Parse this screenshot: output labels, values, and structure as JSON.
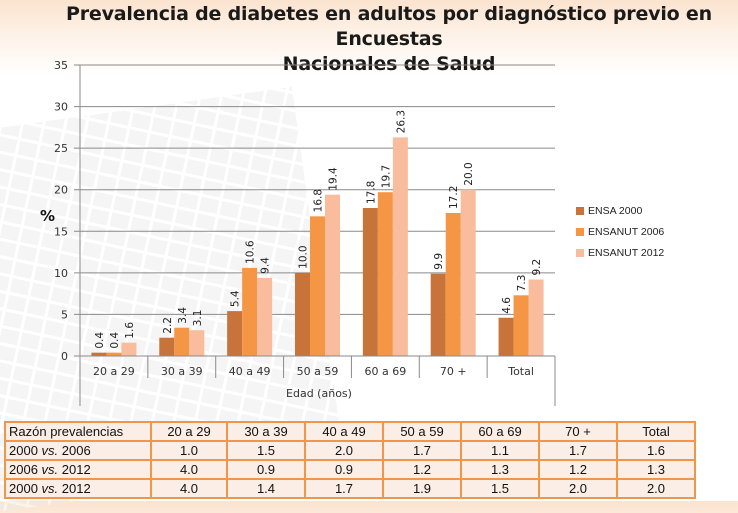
{
  "title_lines": [
    "Prevalencia de diabetes en adultos por diagnóstico previo en Encuestas",
    "Nacionales de Salud"
  ],
  "chart_data": {
    "type": "bar",
    "title": "Prevalencia de diabetes en adultos por diagnóstico previo en Encuestas Nacionales de Salud",
    "xlabel": "Edad (años)",
    "ylabel": "%",
    "ylim": [
      0,
      35
    ],
    "yticks": [
      0,
      5,
      10,
      15,
      20,
      25,
      30,
      35
    ],
    "grid": true,
    "legend_position": "right",
    "categories": [
      "20 a 29",
      "30 a 39",
      "40 a 49",
      "50 a 59",
      "60 a 69",
      "70 +",
      "Total"
    ],
    "series": [
      {
        "name": "ENSA 2000",
        "color": "#c8733a",
        "values": [
          0.4,
          2.2,
          5.4,
          10.0,
          17.8,
          9.9,
          4.6
        ],
        "labels": [
          "0.4",
          "2.2",
          "5.4",
          "10.0",
          "17.8",
          "9.9",
          "4.6"
        ]
      },
      {
        "name": "ENSANUT 2006",
        "color": "#f59645",
        "values": [
          0.4,
          3.4,
          10.6,
          16.8,
          19.7,
          17.2,
          7.3
        ],
        "labels": [
          "0.4",
          "3.4",
          "10.6",
          "16.8",
          "19.7",
          "17.2",
          "7.3"
        ]
      },
      {
        "name": "ENSANUT 2012",
        "color": "#f9bc9c",
        "values": [
          1.6,
          3.1,
          9.4,
          19.4,
          26.3,
          20.0,
          9.2
        ],
        "labels": [
          "1.6",
          "3.1",
          "9.4",
          "19.4",
          "26.3",
          "20.0",
          "9.2"
        ]
      }
    ]
  },
  "ratio_table": {
    "header": [
      "Razón prevalencias",
      "20 a 29",
      "30 a 39",
      "40 a 49",
      "50 a 59",
      "60 a 69",
      "70 +",
      "Total"
    ],
    "rows": [
      {
        "label_a": "2000 ",
        "label_vs": "vs.",
        "label_b": " 2006",
        "values": [
          "1.0",
          "1.5",
          "2.0",
          "1.7",
          "1.1",
          "1.7",
          "1.6"
        ]
      },
      {
        "label_a": "2006 ",
        "label_vs": "vs.",
        "label_b": " 2012",
        "values": [
          "4.0",
          "0.9",
          "0.9",
          "1.2",
          "1.3",
          "1.2",
          "1.3"
        ]
      },
      {
        "label_a": "2000 ",
        "label_vs": "vs.",
        "label_b": " 2012",
        "values": [
          "4.0",
          "1.4",
          "1.7",
          "1.9",
          "1.5",
          "2.0",
          "2.0"
        ]
      }
    ]
  }
}
